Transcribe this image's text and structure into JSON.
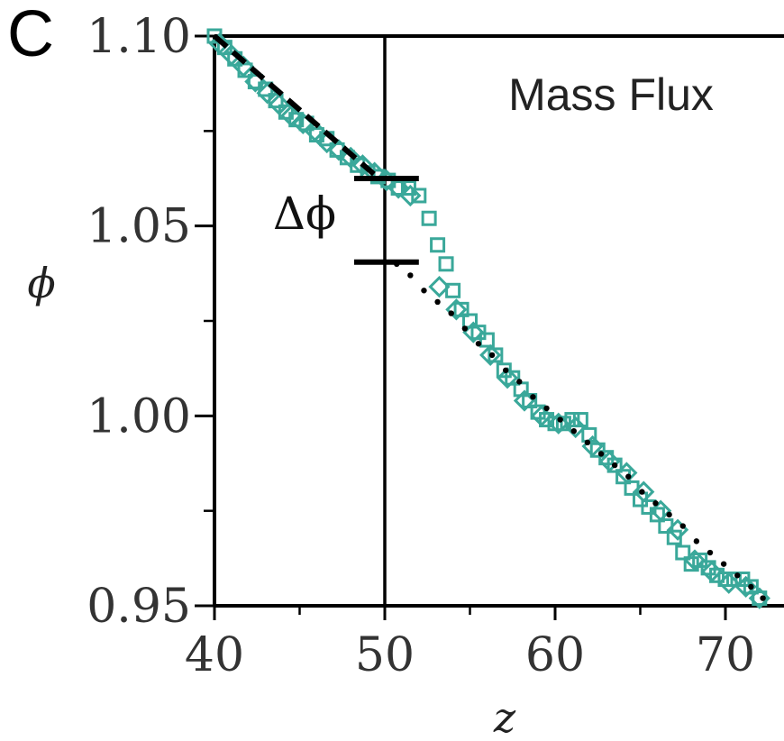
{
  "panel_label": "C",
  "chart_data": {
    "type": "scatter",
    "title": "",
    "annotation": "Mass Flux",
    "delta_label": "Δϕ",
    "xlabel": "z",
    "ylabel": "ϕ",
    "xlim": [
      40,
      74
    ],
    "ylim": [
      0.95,
      1.1
    ],
    "x_ticks": [
      40,
      50,
      60,
      70
    ],
    "x_tick_labels": [
      "40",
      "50",
      "60",
      "70"
    ],
    "x_minor_ticks": [
      45,
      55,
      65
    ],
    "y_ticks": [
      0.95,
      1.0,
      1.05,
      1.1
    ],
    "y_tick_labels": [
      "0.95",
      "1.00",
      "1.05",
      "1.10"
    ],
    "y_minor_ticks": [
      0.975,
      1.025,
      1.075
    ],
    "grid": false,
    "vertical_line_x": 50,
    "delta_bars": [
      {
        "x_from": 48.2,
        "x_to": 52.0,
        "y": 1.0625
      },
      {
        "x_from": 48.2,
        "x_to": 52.0,
        "y": 1.0405
      }
    ],
    "series": [
      {
        "kind": "square",
        "color": "#3aa89a",
        "x": [
          40.0,
          40.6,
          41.2,
          41.8,
          42.4,
          43.0,
          43.6,
          44.2,
          44.8,
          45.4,
          46.0,
          46.6,
          47.2,
          47.8,
          48.4,
          49.0,
          49.6,
          50.2,
          50.8,
          51.4,
          52.0,
          52.6,
          53.1,
          53.6,
          54.0,
          54.5,
          55.0,
          55.5,
          56.0,
          56.5,
          57.0,
          57.5,
          58.0,
          58.5,
          59.0,
          59.5,
          60.0,
          60.5,
          61.0,
          61.5,
          62.0,
          62.5,
          63.0,
          63.5,
          64.0,
          64.5,
          65.0,
          65.5,
          66.0,
          66.5,
          67.0,
          67.5,
          68.0,
          68.5,
          69.0,
          69.5,
          70.0,
          70.5,
          71.0,
          71.5,
          72.0
        ],
        "y": [
          1.1,
          1.097,
          1.094,
          1.091,
          1.088,
          1.086,
          1.083,
          1.08,
          1.078,
          1.077,
          1.074,
          1.073,
          1.07,
          1.068,
          1.066,
          1.064,
          1.063,
          1.062,
          1.06,
          1.06,
          1.058,
          1.052,
          1.045,
          1.04,
          1.033,
          1.028,
          1.025,
          1.022,
          1.02,
          1.016,
          1.012,
          1.01,
          1.007,
          1.004,
          1.001,
          0.999,
          0.998,
          0.998,
          0.999,
          0.999,
          0.995,
          0.991,
          0.989,
          0.987,
          0.984,
          0.981,
          0.978,
          0.976,
          0.974,
          0.971,
          0.968,
          0.964,
          0.961,
          0.962,
          0.96,
          0.958,
          0.957,
          0.957,
          0.957,
          0.955,
          0.952
        ]
      },
      {
        "kind": "diamond",
        "color": "#3aa89a",
        "x": [
          40.3,
          41.0,
          41.7,
          42.4,
          43.1,
          43.8,
          44.5,
          45.2,
          45.9,
          46.6,
          47.3,
          48.0,
          48.7,
          49.4,
          50.1,
          50.8,
          51.5,
          53.2,
          54.2,
          55.2,
          56.2,
          57.2,
          58.2,
          59.2,
          60.2,
          61.2,
          62.2,
          63.2,
          64.2,
          65.2,
          66.2,
          67.2,
          68.2,
          69.2,
          70.2,
          71.2,
          72.0
        ],
        "y": [
          1.098,
          1.095,
          1.092,
          1.088,
          1.085,
          1.082,
          1.079,
          1.077,
          1.075,
          1.072,
          1.07,
          1.068,
          1.066,
          1.064,
          1.062,
          1.06,
          1.058,
          1.034,
          1.028,
          1.022,
          1.016,
          1.01,
          1.004,
          1.0,
          0.998,
          0.997,
          0.992,
          0.988,
          0.985,
          0.98,
          0.975,
          0.97,
          0.962,
          0.959,
          0.956,
          0.955,
          0.952
        ]
      },
      {
        "kind": "dashed-line",
        "color": "#000000",
        "x": [
          40.0,
          49.4
        ],
        "y": [
          1.1,
          1.0635
        ]
      },
      {
        "kind": "dotted-line",
        "color": "#000000",
        "x": [
          50.7,
          51.5,
          52.3,
          53.1,
          53.9,
          54.7,
          55.5,
          56.3,
          57.1,
          57.9,
          58.7,
          59.5,
          60.3,
          61.1,
          61.9,
          62.7,
          63.5,
          64.3,
          65.1,
          65.9,
          66.7,
          67.5,
          68.3,
          69.1,
          69.9,
          70.7,
          71.5,
          72.2
        ],
        "y": [
          1.04,
          1.037,
          1.033,
          1.03,
          1.027,
          1.023,
          1.019,
          1.016,
          1.012,
          1.009,
          1.005,
          1.002,
          0.999,
          0.996,
          0.993,
          0.99,
          0.987,
          0.984,
          0.98,
          0.977,
          0.974,
          0.971,
          0.967,
          0.964,
          0.961,
          0.958,
          0.955,
          0.952
        ]
      }
    ]
  }
}
